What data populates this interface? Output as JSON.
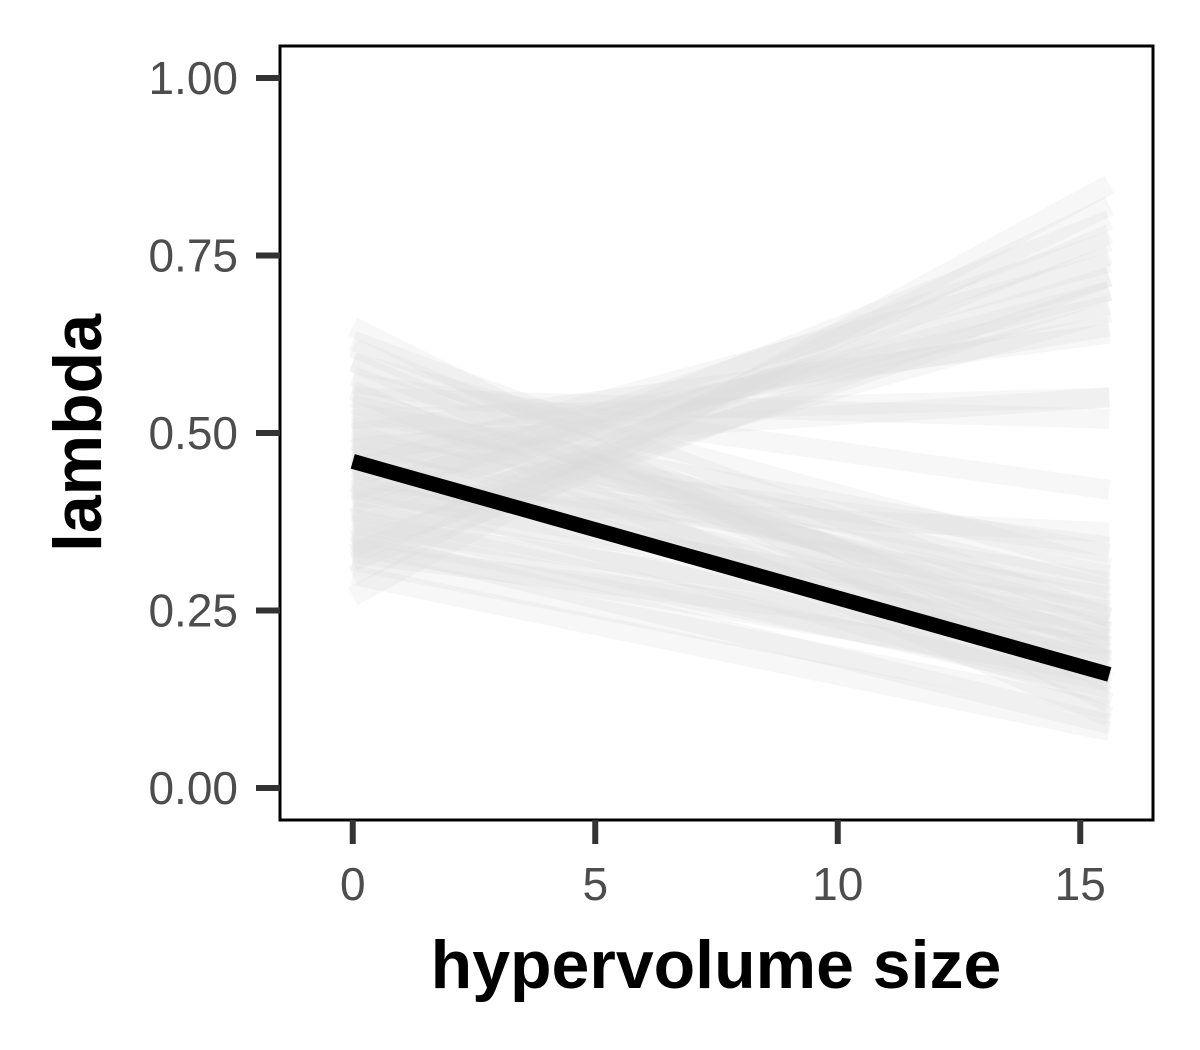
{
  "chart_data": {
    "type": "line",
    "xlabel": "hypervolume size",
    "ylabel": "lambda",
    "xlim": [
      -1.5,
      16.5
    ],
    "ylim": [
      -0.045,
      1.045
    ],
    "x_ticks": [
      0,
      5,
      10,
      15
    ],
    "x_tick_labels": [
      "0",
      "5",
      "10",
      "15"
    ],
    "y_ticks": [
      0,
      0.25,
      0.5,
      0.75,
      1
    ],
    "y_tick_labels": [
      "0.00",
      "0.25",
      "0.50",
      "0.75",
      "1.00"
    ],
    "grid": false,
    "legend": "none",
    "x_range": [
      0,
      15.6
    ],
    "colors": {
      "main": "#000000",
      "samples": "#d9d9d9",
      "axis": "#333333",
      "frame": "#000000"
    },
    "main_line": {
      "y0": 0.46,
      "y1": 0.16
    },
    "sample_lines": [
      {
        "y0": 0.65,
        "y1": 0.12
      },
      {
        "y0": 0.62,
        "y1": 0.18
      },
      {
        "y0": 0.6,
        "y1": 0.15
      },
      {
        "y0": 0.58,
        "y1": 0.2
      },
      {
        "y0": 0.56,
        "y1": 0.1
      },
      {
        "y0": 0.55,
        "y1": 0.22
      },
      {
        "y0": 0.54,
        "y1": 0.28
      },
      {
        "y0": 0.52,
        "y1": 0.24
      },
      {
        "y0": 0.51,
        "y1": 0.3
      },
      {
        "y0": 0.5,
        "y1": 0.17
      },
      {
        "y0": 0.49,
        "y1": 0.26
      },
      {
        "y0": 0.48,
        "y1": 0.34
      },
      {
        "y0": 0.47,
        "y1": 0.21
      },
      {
        "y0": 0.45,
        "y1": 0.19
      },
      {
        "y0": 0.44,
        "y1": 0.27
      },
      {
        "y0": 0.43,
        "y1": 0.13
      },
      {
        "y0": 0.42,
        "y1": 0.23
      },
      {
        "y0": 0.41,
        "y1": 0.36
      },
      {
        "y0": 0.4,
        "y1": 0.25
      },
      {
        "y0": 0.39,
        "y1": 0.18
      },
      {
        "y0": 0.38,
        "y1": 0.14
      },
      {
        "y0": 0.37,
        "y1": 0.22
      },
      {
        "y0": 0.35,
        "y1": 0.09
      },
      {
        "y0": 0.34,
        "y1": 0.16
      },
      {
        "y0": 0.33,
        "y1": 0.2
      },
      {
        "y0": 0.32,
        "y1": 0.11
      },
      {
        "y0": 0.3,
        "y1": 0.08
      },
      {
        "y0": 0.57,
        "y1": 0.42
      },
      {
        "y0": 0.53,
        "y1": 0.33
      },
      {
        "y0": 0.46,
        "y1": 0.29
      },
      {
        "y0": 0.6,
        "y1": 0.31
      },
      {
        "y0": 0.63,
        "y1": 0.24
      },
      {
        "y0": 0.36,
        "y1": 0.15
      },
      {
        "y0": 0.27,
        "y1": 0.85
      },
      {
        "y0": 0.3,
        "y1": 0.82
      },
      {
        "y0": 0.33,
        "y1": 0.78
      },
      {
        "y0": 0.35,
        "y1": 0.75
      },
      {
        "y0": 0.38,
        "y1": 0.8
      },
      {
        "y0": 0.4,
        "y1": 0.72
      },
      {
        "y0": 0.42,
        "y1": 0.7
      },
      {
        "y0": 0.44,
        "y1": 0.68
      },
      {
        "y0": 0.45,
        "y1": 0.74
      },
      {
        "y0": 0.47,
        "y1": 0.65
      },
      {
        "y0": 0.37,
        "y1": 0.67
      },
      {
        "y0": 0.32,
        "y1": 0.72
      },
      {
        "y0": 0.5,
        "y1": 0.64
      },
      {
        "y0": 0.48,
        "y1": 0.55
      },
      {
        "y0": 0.52,
        "y1": 0.55
      },
      {
        "y0": 0.55,
        "y1": 0.52
      },
      {
        "y0": 0.41,
        "y1": 0.77
      },
      {
        "y0": 0.34,
        "y1": 0.7
      }
    ]
  }
}
